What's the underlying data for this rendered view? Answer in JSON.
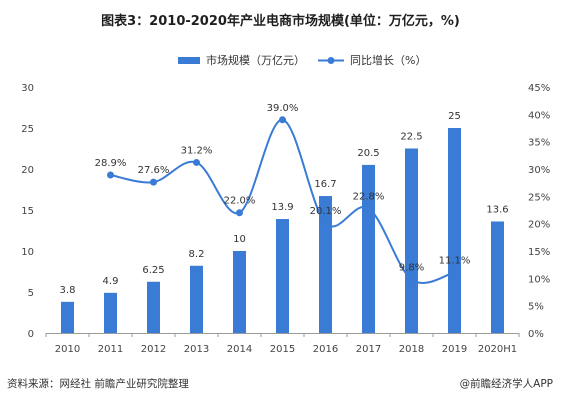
{
  "title": "图表3：2010-2020年产业电商市场规模(单位：万亿元，%)",
  "source": "资料来源：网经社 前瞻产业研究院整理",
  "brand": "@前瞻经济学人APP",
  "colors": {
    "bar": "#3a7bd5",
    "line": "#3a7bd5",
    "axis": "#9a9a9a",
    "text": "#333333"
  },
  "chart_data": {
    "type": "bar",
    "categories": [
      "2010",
      "2011",
      "2012",
      "2013",
      "2014",
      "2015",
      "2016",
      "2017",
      "2018",
      "2019",
      "2020H1"
    ],
    "left_axis": {
      "ylim": [
        0,
        30
      ],
      "ticks": [
        "0",
        "5",
        "10",
        "15",
        "20",
        "25",
        "30"
      ]
    },
    "right_axis": {
      "ylim": [
        0,
        45
      ],
      "ticks": [
        "0%",
        "5%",
        "10%",
        "15%",
        "20%",
        "25%",
        "30%",
        "35%",
        "40%",
        "45%"
      ]
    },
    "legend_position": "top-center",
    "series": [
      {
        "name": "市场规模（万亿元）",
        "type": "bar",
        "axis": "left",
        "values": [
          3.8,
          4.9,
          6.25,
          8.2,
          10,
          13.9,
          16.7,
          20.5,
          22.5,
          25,
          13.6
        ],
        "labels": [
          "3.8",
          "4.9",
          "6.25",
          "8.2",
          "10",
          "13.9",
          "16.7",
          "20.5",
          "22.5",
          "25",
          "13.6"
        ]
      },
      {
        "name": "同比增长（%）",
        "type": "line",
        "axis": "right",
        "values": [
          null,
          28.9,
          27.6,
          31.2,
          22.0,
          39.0,
          20.1,
          22.8,
          9.8,
          11.1,
          null
        ],
        "labels": [
          "",
          "28.9%",
          "27.6%",
          "31.2%",
          "22.0%",
          "39.0%",
          "20.1%",
          "22.8%",
          "9.8%",
          "11.1%",
          ""
        ]
      }
    ]
  }
}
